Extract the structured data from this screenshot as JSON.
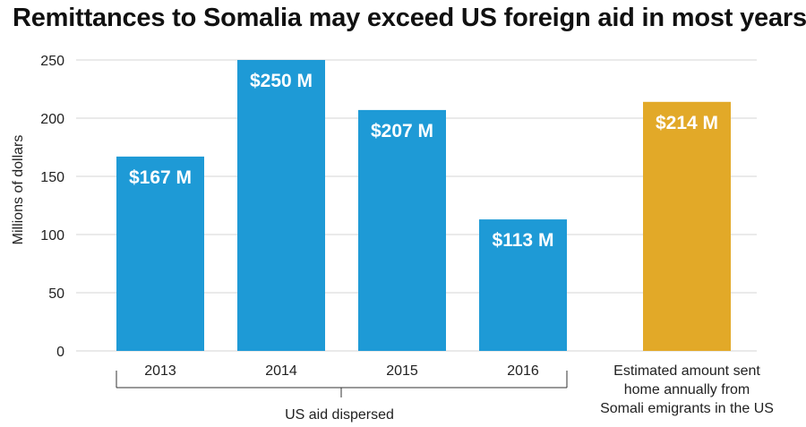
{
  "chart_data": {
    "type": "bar",
    "title": "Remittances to Somalia may exceed US foreign aid in most years.",
    "ylabel": "Millions of dollars",
    "xlabel": "",
    "ylim": [
      0,
      250
    ],
    "yticks": [
      0,
      50,
      100,
      150,
      200,
      250
    ],
    "grid": true,
    "categories": [
      "2013",
      "2014",
      "2015",
      "2016",
      "Estimated amount sent home annually from Somali emigrants in the US"
    ],
    "category_lines": [
      [
        "2013"
      ],
      [
        "2014"
      ],
      [
        "2015"
      ],
      [
        "2016"
      ],
      [
        "Estimated amount sent",
        "home annually from",
        "Somali emigrants in the US"
      ]
    ],
    "values": [
      167,
      250,
      207,
      113,
      214
    ],
    "data_labels": [
      "$167 M",
      "$250 M",
      "$207 M",
      "$113 M",
      "$214 M"
    ],
    "colors": [
      "#1e9ad6",
      "#1e9ad6",
      "#1e9ad6",
      "#1e9ad6",
      "#e2a928"
    ],
    "group_label": "US aid dispersed",
    "grid_color": "#d4d4d4",
    "text_color": "#222222"
  }
}
